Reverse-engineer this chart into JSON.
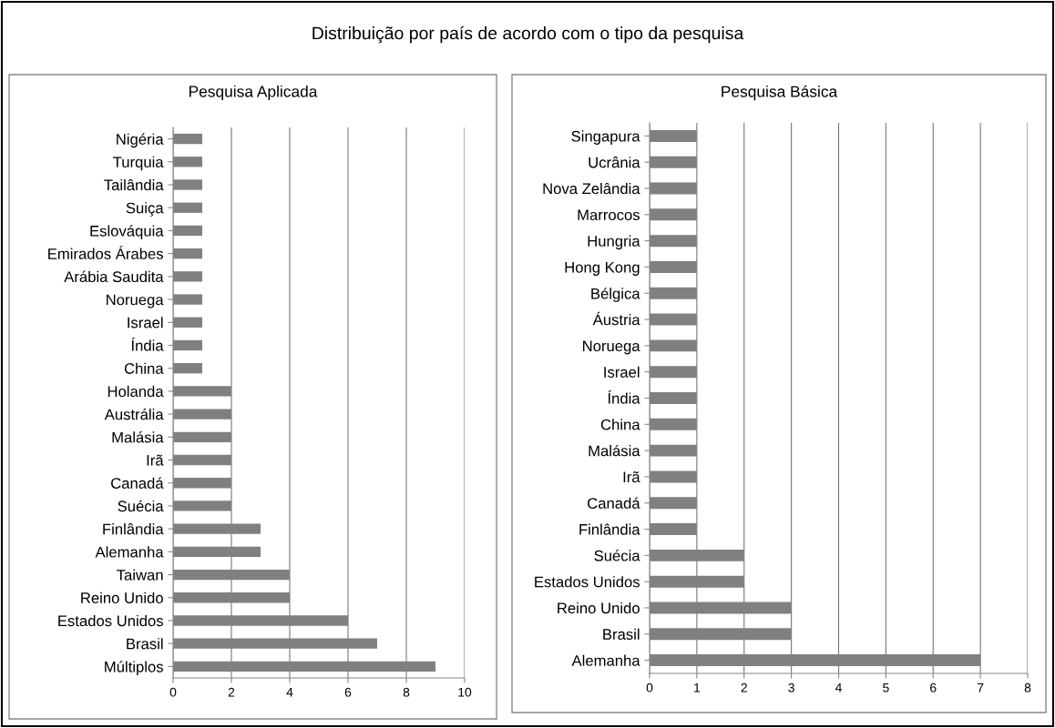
{
  "chart_data": [
    {
      "type": "bar",
      "orientation": "horizontal",
      "title": "Pesquisa Aplicada",
      "annotations": [
        "Distribuição por país de acordo com o tipo da pesquisa"
      ],
      "categories": [
        "Nigéria",
        "Turquia",
        "Tailândia",
        "Suiça",
        "Eslováquia",
        "Emirados Árabes",
        "Arábia Saudita",
        "Noruega",
        "Israel",
        "Índia",
        "China",
        "Holanda",
        "Austrália",
        "Malásia",
        "Irã",
        "Canadá",
        "Suécia",
        "Finlândia",
        "Alemanha",
        "Taiwan",
        "Reino Unido",
        "Estados Unidos",
        "Brasil",
        "Múltiplos"
      ],
      "values": [
        1,
        1,
        1,
        1,
        1,
        1,
        1,
        1,
        1,
        1,
        1,
        2,
        2,
        2,
        2,
        2,
        2,
        3,
        3,
        4,
        4,
        6,
        7,
        9
      ],
      "color": "#808080",
      "xlim": [
        0,
        10
      ],
      "xticks": [
        0,
        2,
        4,
        6,
        8,
        10
      ],
      "grid": "x",
      "legend": false
    },
    {
      "type": "bar",
      "orientation": "horizontal",
      "title": "Pesquisa Básica",
      "categories": [
        "Singapura",
        "Ucrânia",
        "Nova Zelândia",
        "Marrocos",
        "Hungria",
        "Hong Kong",
        "Bélgica",
        "Áustria",
        "Noruega",
        "Israel",
        "Índia",
        "China",
        "Malásia",
        "Irã",
        "Canadá",
        "Finlândia",
        "Suécia",
        "Estados Unidos",
        "Reino Unido",
        "Brasil",
        "Alemanha"
      ],
      "values": [
        1,
        1,
        1,
        1,
        1,
        1,
        1,
        1,
        1,
        1,
        1,
        1,
        1,
        1,
        1,
        1,
        2,
        2,
        3,
        3,
        7
      ],
      "color": "#808080",
      "xlim": [
        0,
        8
      ],
      "xticks": [
        0,
        1,
        2,
        3,
        4,
        5,
        6,
        7,
        8
      ],
      "grid": "x",
      "legend": false
    }
  ]
}
